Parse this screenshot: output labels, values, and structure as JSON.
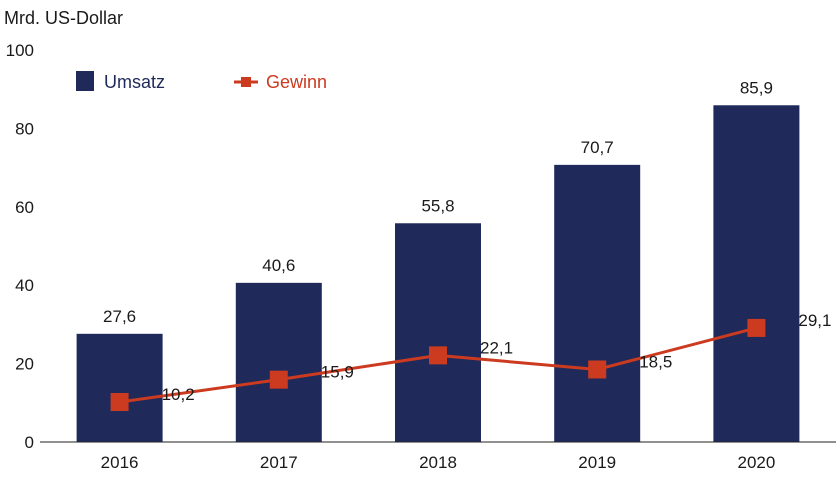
{
  "chart_data": {
    "type": "bar",
    "unit_label": "Mrd. US-Dollar",
    "categories": [
      "2016",
      "2017",
      "2018",
      "2019",
      "2020"
    ],
    "ylim": [
      0,
      100
    ],
    "yticks": [
      0,
      20,
      40,
      60,
      80,
      100
    ],
    "ytick_labels": [
      "0",
      "20",
      "40",
      "60",
      "80",
      "100"
    ],
    "grid": false,
    "legend_position": "top-left",
    "series": [
      {
        "name": "Umsatz",
        "type": "bar",
        "color": "#1f2a5a",
        "values": [
          27.6,
          40.6,
          55.8,
          70.7,
          85.9
        ],
        "labels": [
          "27,6",
          "40,6",
          "55,8",
          "70,7",
          "85,9"
        ]
      },
      {
        "name": "Gewinn",
        "type": "line",
        "marker": "square",
        "color": "#cc3a1f",
        "values": [
          10.2,
          15.9,
          22.1,
          18.5,
          29.1
        ],
        "labels": [
          "10,2",
          "15,9",
          "22,1",
          "18,5",
          "29,1"
        ]
      }
    ]
  }
}
